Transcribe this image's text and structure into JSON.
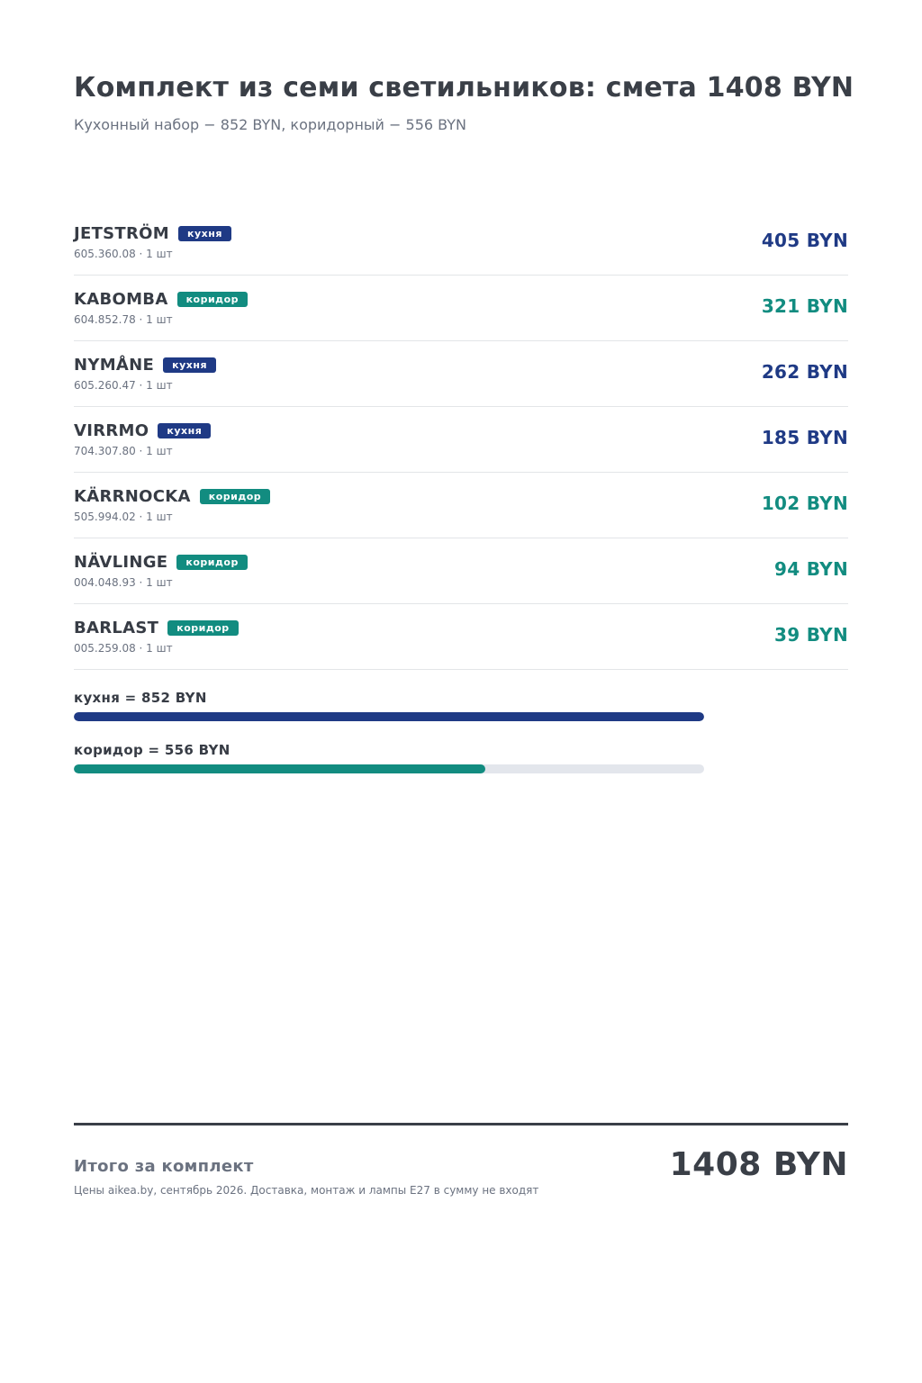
{
  "header": {
    "title": "Комплект из семи светильников: смета 1408 BYN",
    "subtitle": "Кухонный набор − 852 BYN, коридорный − 556 BYN"
  },
  "colors": {
    "kitchen": "#1f3a85",
    "corridor": "#128c80"
  },
  "items": [
    {
      "name": "JETSTRÖM",
      "tag": "кухня",
      "group": "kitchen",
      "meta": "605.360.08 · 1 шт",
      "price": "405 BYN"
    },
    {
      "name": "KABOMBA",
      "tag": "коридор",
      "group": "corridor",
      "meta": "604.852.78 · 1 шт",
      "price": "321 BYN"
    },
    {
      "name": "NYMÅNE",
      "tag": "кухня",
      "group": "kitchen",
      "meta": "605.260.47 · 1 шт",
      "price": "262 BYN"
    },
    {
      "name": "VIRRMO",
      "tag": "кухня",
      "group": "kitchen",
      "meta": "704.307.80 · 1 шт",
      "price": "185 BYN"
    },
    {
      "name": "KÄRRNOCKA",
      "tag": "коридор",
      "group": "corridor",
      "meta": "505.994.02 · 1 шт",
      "price": "102 BYN"
    },
    {
      "name": "NÄVLINGE",
      "tag": "коридор",
      "group": "corridor",
      "meta": "004.048.93 · 1 шт",
      "price": "94 BYN"
    },
    {
      "name": "BARLAST",
      "tag": "коридор",
      "group": "corridor",
      "meta": "005.259.08 · 1 шт",
      "price": "39 BYN"
    }
  ],
  "bars": [
    {
      "label": "кухня = 852 BYN",
      "group": "kitchen",
      "fraction": 1.0
    },
    {
      "label": "коридор = 556 BYN",
      "group": "corridor",
      "fraction": 0.6526
    }
  ],
  "footer": {
    "label": "Итого за комплект",
    "note": "Цены aikea.by, сентябрь 2026. Доставка, монтаж и лампы E27 в сумму не входят",
    "total": "1408 BYN"
  }
}
